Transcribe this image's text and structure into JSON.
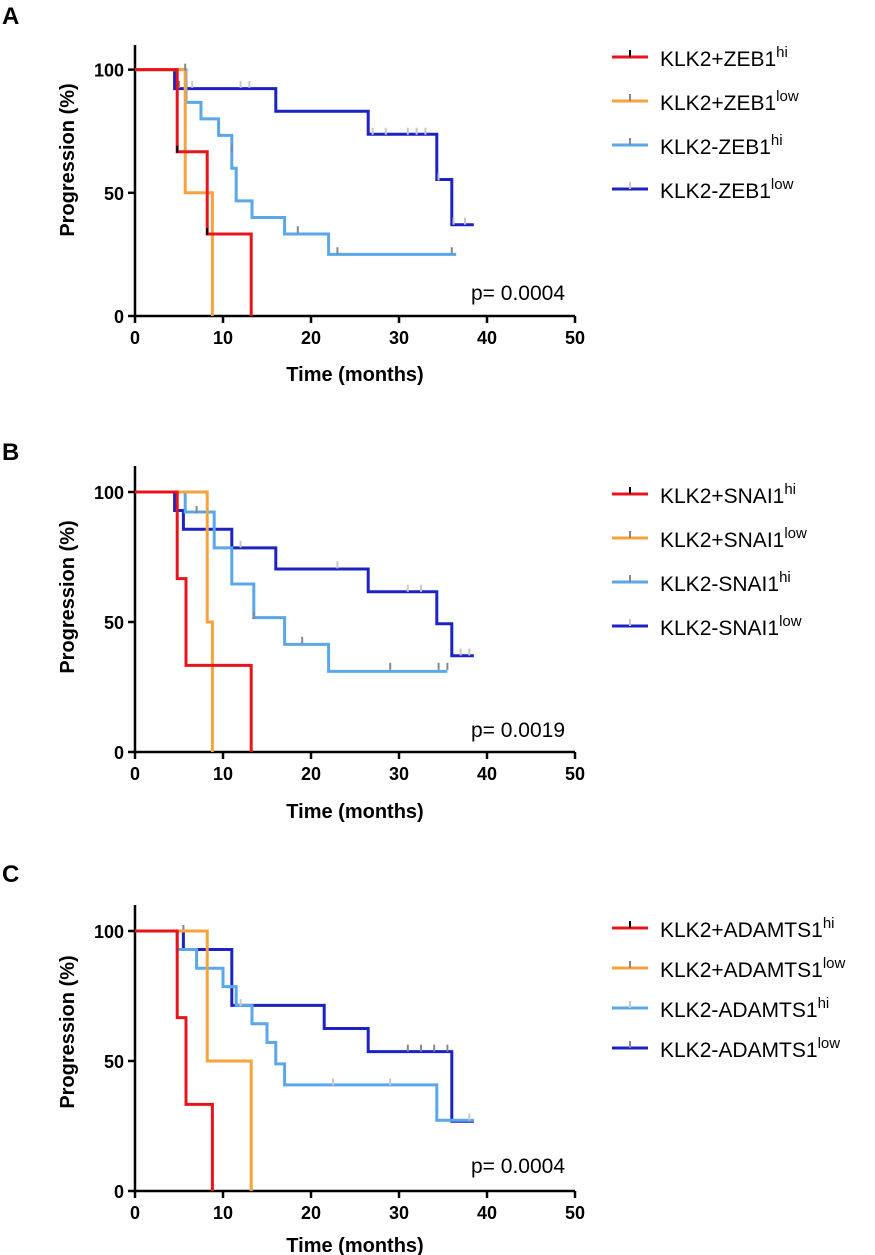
{
  "colors": {
    "red": "#e8141b",
    "orange": "#f5a33c",
    "lightblue": "#5aa7ea",
    "darkblue": "#1c22c4",
    "censor_gray": "#888888",
    "censor_light": "#c8c8c8"
  },
  "chart_data": [
    {
      "panel": "A",
      "type": "line",
      "subtype": "kaplan-meier step",
      "xlabel": "Time (months)",
      "ylabel": "Progression (%)",
      "xlim": [
        0,
        50
      ],
      "ylim": [
        0,
        110
      ],
      "xticks": [
        "0",
        "10",
        "20",
        "30",
        "40",
        "50"
      ],
      "yticks": [
        "0",
        "50",
        "100"
      ],
      "p_value": "p= 0.0004",
      "series": [
        {
          "name": "KLK2+ZEB1",
          "sup": "hi",
          "color": "#e8141b",
          "censor_color": "#000000",
          "points": [
            [
              0,
              100
            ],
            [
              4.8,
              100
            ],
            [
              4.8,
              66.7
            ],
            [
              8.2,
              66.7
            ],
            [
              8.2,
              33.3
            ],
            [
              13.2,
              33.3
            ],
            [
              13.2,
              0
            ]
          ],
          "censors": [
            [
              4.8,
              66.7
            ],
            [
              8.2,
              33.3
            ]
          ]
        },
        {
          "name": "KLK2+ZEB1",
          "sup": "low",
          "color": "#f5a33c",
          "censor_color": "#888888",
          "points": [
            [
              0,
              100
            ],
            [
              5.7,
              100
            ],
            [
              5.7,
              50
            ],
            [
              8.8,
              50
            ],
            [
              8.8,
              0
            ]
          ],
          "censors": [
            [
              5.7,
              100
            ]
          ]
        },
        {
          "name": "KLK2-ZEB1",
          "sup": "hi",
          "color": "#5aa7ea",
          "censor_color": "#888888",
          "points": [
            [
              0,
              100
            ],
            [
              5.8,
              100
            ],
            [
              5.8,
              86.7
            ],
            [
              7.5,
              86.7
            ],
            [
              7.5,
              80
            ],
            [
              9.5,
              80
            ],
            [
              9.5,
              73.3
            ],
            [
              11,
              73.3
            ],
            [
              11,
              60
            ],
            [
              11.5,
              60
            ],
            [
              11.5,
              46.7
            ],
            [
              13.3,
              46.7
            ],
            [
              13.3,
              40
            ],
            [
              17,
              40
            ],
            [
              17,
              33.3
            ],
            [
              22,
              33.3
            ],
            [
              22,
              25
            ],
            [
              36.5,
              25
            ]
          ],
          "censors": [
            [
              5,
              93
            ],
            [
              11,
              67
            ],
            [
              18.5,
              34
            ],
            [
              23,
              25.5
            ],
            [
              36,
              25.5
            ]
          ]
        },
        {
          "name": "KLK2-ZEB1",
          "sup": "low",
          "color": "#1c22c4",
          "censor_color": "#c8c8c8",
          "points": [
            [
              0,
              100
            ],
            [
              4.5,
              100
            ],
            [
              4.5,
              92.3
            ],
            [
              16,
              92.3
            ],
            [
              16,
              83.1
            ],
            [
              26.5,
              83.1
            ],
            [
              26.5,
              73.8
            ],
            [
              34.3,
              73.8
            ],
            [
              34.3,
              55.4
            ],
            [
              36,
              55.4
            ],
            [
              36,
              37
            ],
            [
              38.5,
              37
            ]
          ],
          "censors": [
            [
              5,
              93
            ],
            [
              6.5,
              93
            ],
            [
              12,
              93
            ],
            [
              13,
              93
            ],
            [
              27,
              74
            ],
            [
              28.5,
              74
            ],
            [
              31,
              74
            ],
            [
              32,
              74
            ],
            [
              33,
              74
            ],
            [
              34.5,
              55.4
            ],
            [
              36.2,
              37.5
            ],
            [
              37.5,
              37.5
            ]
          ]
        }
      ]
    },
    {
      "panel": "B",
      "type": "line",
      "subtype": "kaplan-meier step",
      "xlabel": "Time (months)",
      "ylabel": "Progression (%)",
      "xlim": [
        0,
        50
      ],
      "ylim": [
        0,
        110
      ],
      "xticks": [
        "0",
        "10",
        "20",
        "30",
        "40",
        "50"
      ],
      "yticks": [
        "0",
        "50",
        "100"
      ],
      "p_value": "p= 0.0019",
      "series": [
        {
          "name": "KLK2+SNAI1",
          "sup": "hi",
          "color": "#e8141b",
          "censor_color": "#000000",
          "points": [
            [
              0,
              100
            ],
            [
              4.8,
              100
            ],
            [
              4.8,
              66.7
            ],
            [
              5.8,
              66.7
            ],
            [
              5.8,
              33.3
            ],
            [
              13.2,
              33.3
            ],
            [
              13.2,
              0
            ]
          ],
          "censors": []
        },
        {
          "name": "KLK2+SNAI1",
          "sup": "low",
          "color": "#f5a33c",
          "censor_color": "#888888",
          "points": [
            [
              0,
              100
            ],
            [
              8.2,
              100
            ],
            [
              8.2,
              50
            ],
            [
              8.8,
              50
            ],
            [
              8.8,
              0
            ]
          ],
          "censors": []
        },
        {
          "name": "KLK2-SNAI1",
          "sup": "hi",
          "color": "#5aa7ea",
          "censor_color": "#888888",
          "points": [
            [
              0,
              100
            ],
            [
              5.7,
              100
            ],
            [
              5.7,
              92.3
            ],
            [
              9,
              92.3
            ],
            [
              9,
              78.5
            ],
            [
              11,
              78.5
            ],
            [
              11,
              64.6
            ],
            [
              13.5,
              64.6
            ],
            [
              13.5,
              51.7
            ],
            [
              17,
              51.7
            ],
            [
              17,
              41.4
            ],
            [
              22,
              41.4
            ],
            [
              22,
              31
            ],
            [
              35.5,
              31
            ]
          ],
          "censors": [
            [
              7,
              92.3
            ],
            [
              13.5,
              51.5
            ],
            [
              19,
              42
            ],
            [
              29,
              32
            ],
            [
              34.5,
              32
            ],
            [
              35.5,
              32
            ]
          ]
        },
        {
          "name": "KLK2-SNAI1",
          "sup": "low",
          "color": "#1c22c4",
          "censor_color": "#c8c8c8",
          "points": [
            [
              0,
              100
            ],
            [
              4.5,
              100
            ],
            [
              4.5,
              92.9
            ],
            [
              5.5,
              92.9
            ],
            [
              5.5,
              85.7
            ],
            [
              11,
              85.7
            ],
            [
              11,
              78.5
            ],
            [
              16,
              78.5
            ],
            [
              16,
              70.4
            ],
            [
              26.5,
              70.4
            ],
            [
              26.5,
              61.6
            ],
            [
              34.3,
              61.6
            ],
            [
              34.3,
              49.3
            ],
            [
              36,
              49.3
            ],
            [
              36,
              37
            ],
            [
              38.5,
              37
            ]
          ],
          "censors": [
            [
              12,
              79
            ],
            [
              23,
              71
            ],
            [
              31,
              62
            ],
            [
              32.5,
              62
            ],
            [
              37,
              37.5
            ],
            [
              38,
              37.5
            ]
          ]
        }
      ]
    },
    {
      "panel": "C",
      "type": "line",
      "subtype": "kaplan-meier step",
      "xlabel": "Time (months)",
      "ylabel": "Progression (%)",
      "xlim": [
        0,
        50
      ],
      "ylim": [
        0,
        110
      ],
      "xticks": [
        "0",
        "10",
        "20",
        "30",
        "40",
        "50"
      ],
      "yticks": [
        "0",
        "50",
        "100"
      ],
      "p_value": "p= 0.0004",
      "series": [
        {
          "name": "KLK2+ADAMTS1",
          "sup": "hi",
          "color": "#e8141b",
          "censor_color": "#000000",
          "points": [
            [
              0,
              100
            ],
            [
              4.8,
              100
            ],
            [
              4.8,
              66.7
            ],
            [
              5.8,
              66.7
            ],
            [
              5.8,
              33.3
            ],
            [
              8.8,
              33.3
            ],
            [
              8.8,
              0
            ]
          ],
          "censors": []
        },
        {
          "name": "KLK2+ADAMTS1",
          "sup": "low",
          "color": "#f5a33c",
          "censor_color": "#888888",
          "points": [
            [
              0,
              100
            ],
            [
              8.2,
              100
            ],
            [
              8.2,
              50
            ],
            [
              13.2,
              50
            ],
            [
              13.2,
              0
            ]
          ],
          "censors": []
        },
        {
          "name": "KLK2-ADAMTS1",
          "sup": "hi",
          "color": "#5aa7ea",
          "censor_color": "#c8c8c8",
          "points": [
            [
              0,
              100
            ],
            [
              4.8,
              100
            ],
            [
              4.8,
              92.9
            ],
            [
              7,
              92.9
            ],
            [
              7,
              85.7
            ],
            [
              10,
              85.7
            ],
            [
              10,
              78.6
            ],
            [
              11.5,
              78.6
            ],
            [
              11.5,
              71.4
            ],
            [
              13.3,
              71.4
            ],
            [
              13.3,
              64.3
            ],
            [
              15,
              64.3
            ],
            [
              15,
              57.1
            ],
            [
              16,
              57.1
            ],
            [
              16,
              48.9
            ],
            [
              17,
              48.9
            ],
            [
              17,
              40.8
            ],
            [
              34.3,
              40.8
            ],
            [
              34.3,
              27.2
            ],
            [
              38.5,
              27.2
            ]
          ],
          "censors": [
            [
              12,
              71.5
            ],
            [
              22.5,
              41
            ],
            [
              29,
              41
            ],
            [
              38,
              27.5
            ]
          ]
        },
        {
          "name": "KLK2-ADAMTS1",
          "sup": "low",
          "color": "#1c22c4",
          "censor_color": "#888888",
          "points": [
            [
              0,
              100
            ],
            [
              5.5,
              100
            ],
            [
              5.5,
              92.9
            ],
            [
              11,
              92.9
            ],
            [
              11,
              71.4
            ],
            [
              21.5,
              71.4
            ],
            [
              21.5,
              62.5
            ],
            [
              26.5,
              62.5
            ],
            [
              26.5,
              53.6
            ],
            [
              36,
              53.6
            ],
            [
              36,
              26.8
            ],
            [
              38.5,
              26.8
            ]
          ],
          "censors": [
            [
              5.5,
              100
            ],
            [
              31,
              54
            ],
            [
              32.5,
              54
            ],
            [
              34,
              54
            ],
            [
              35.5,
              54
            ]
          ]
        }
      ]
    }
  ]
}
